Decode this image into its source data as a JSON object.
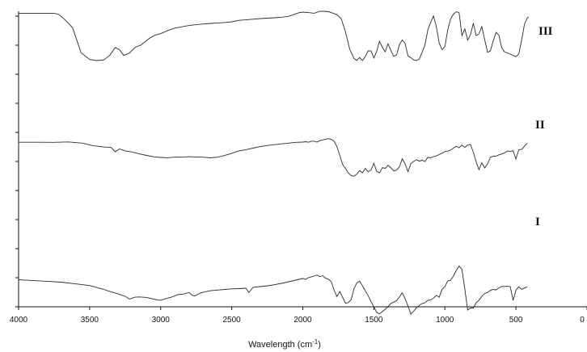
{
  "chart_data": {
    "type": "line",
    "xlabel": "Wavelength (cm",
    "xlabel_sup": "-1",
    "xlabel_close": ")",
    "xlim": [
      4000,
      0
    ],
    "xticks": [
      4000,
      3500,
      3000,
      2500,
      2000,
      1500,
      1000,
      500,
      0
    ],
    "xtick_labels": [
      "4000",
      "3500",
      "3000",
      "2500",
      "2000",
      "1500",
      "1000",
      "500",
      "0"
    ],
    "ylim": [
      0,
      100
    ],
    "y_tick_count": 11,
    "y_tick_labels_shown": false,
    "grid": false,
    "line_color": "#2a2a2a",
    "series": [
      {
        "name": "III",
        "x": [
          4000,
          3750,
          3720,
          3680,
          3620,
          3560,
          3500,
          3450,
          3400,
          3360,
          3320,
          3290,
          3260,
          3220,
          3180,
          3140,
          3080,
          3040,
          3000,
          2950,
          2900,
          2850,
          2800,
          2750,
          2700,
          2650,
          2600,
          2550,
          2500,
          2450,
          2400,
          2350,
          2300,
          2250,
          2200,
          2150,
          2100,
          2060,
          2030,
          2000,
          1960,
          1920,
          1880,
          1850,
          1820,
          1790,
          1760,
          1730,
          1700,
          1670,
          1640,
          1620,
          1600,
          1580,
          1560,
          1540,
          1520,
          1500,
          1480,
          1460,
          1440,
          1420,
          1400,
          1380,
          1360,
          1340,
          1320,
          1300,
          1280,
          1260,
          1240,
          1220,
          1200,
          1180,
          1160,
          1140,
          1120,
          1100,
          1080,
          1060,
          1040,
          1020,
          1000,
          980,
          960,
          940,
          920,
          900,
          880,
          860,
          840,
          820,
          800,
          780,
          760,
          740,
          720,
          700,
          680,
          660,
          640,
          620,
          600,
          580,
          560,
          540,
          520,
          500,
          480,
          460,
          440,
          420,
          410
        ],
        "y": [
          100.0,
          100.0,
          99.4,
          95.8,
          88.9,
          69.5,
          64.3,
          63.5,
          64.0,
          67.4,
          73.5,
          71.9,
          67.4,
          69.3,
          73.7,
          75.4,
          80.6,
          83.1,
          84.3,
          86.7,
          88.6,
          89.6,
          90.6,
          91.2,
          91.8,
          92.2,
          92.6,
          92.9,
          93.5,
          94.6,
          95.0,
          95.5,
          96.0,
          96.3,
          96.6,
          97.0,
          97.7,
          99.3,
          100.4,
          101.0,
          100.6,
          100.1,
          101.6,
          101.6,
          101.3,
          100.2,
          98.9,
          96.0,
          85.9,
          72.3,
          65.1,
          63.6,
          65.8,
          63.5,
          66.6,
          71.0,
          70.9,
          65.4,
          70.6,
          78.5,
          73.7,
          70.2,
          76.5,
          71.2,
          66.7,
          67.7,
          75.7,
          79.4,
          76.8,
          67.0,
          65.8,
          64.0,
          63.5,
          64.7,
          69.9,
          75.6,
          87.4,
          93.3,
          97.9,
          89.6,
          77.1,
          71.9,
          74.3,
          87.4,
          95.6,
          99.4,
          101.2,
          100.6,
          82.8,
          88.0,
          79.3,
          83.4,
          92.4,
          82.8,
          84.1,
          89.7,
          79.5,
          69.9,
          71.0,
          78.6,
          85.3,
          83.1,
          73.4,
          70.1,
          69.4,
          68.5,
          67.5,
          66.5,
          68.5,
          79.4,
          91.8,
          96.5,
          97.1
        ]
      },
      {
        "name": "II",
        "x": [
          4000,
          3850,
          3750,
          3650,
          3550,
          3480,
          3400,
          3350,
          3320,
          3290,
          3250,
          3200,
          3150,
          3100,
          3050,
          3000,
          2950,
          2900,
          2850,
          2800,
          2750,
          2700,
          2650,
          2600,
          2550,
          2500,
          2450,
          2400,
          2350,
          2300,
          2250,
          2200,
          2150,
          2100,
          2050,
          2000,
          1980,
          1960,
          1940,
          1920,
          1900,
          1880,
          1860,
          1840,
          1820,
          1800,
          1780,
          1760,
          1740,
          1720,
          1700,
          1680,
          1660,
          1640,
          1620,
          1600,
          1580,
          1560,
          1540,
          1520,
          1500,
          1480,
          1460,
          1440,
          1420,
          1400,
          1380,
          1360,
          1340,
          1320,
          1300,
          1280,
          1260,
          1240,
          1220,
          1200,
          1180,
          1160,
          1140,
          1120,
          1100,
          1080,
          1060,
          1040,
          1020,
          1000,
          980,
          960,
          940,
          920,
          900,
          880,
          860,
          840,
          820,
          800,
          780,
          760,
          740,
          720,
          700,
          680,
          660,
          640,
          620,
          600,
          580,
          560,
          540,
          520,
          500,
          480,
          460,
          440,
          420
        ],
        "y": [
          64.0,
          64.0,
          63.9,
          64.2,
          63.3,
          61.4,
          60.3,
          60.0,
          56.6,
          58.8,
          57.3,
          56.4,
          55.0,
          53.8,
          52.7,
          52.2,
          52.0,
          52.5,
          52.4,
          52.8,
          52.6,
          52.4,
          51.9,
          52.4,
          53.7,
          55.4,
          57.3,
          58.2,
          59.4,
          60.6,
          61.5,
          62.1,
          62.7,
          63.3,
          63.9,
          64.1,
          64.4,
          64.0,
          64.8,
          64.8,
          64.1,
          65.2,
          65.7,
          66.2,
          66.8,
          66.2,
          64.7,
          60.6,
          54.0,
          46.8,
          43.8,
          40.3,
          38.1,
          37.8,
          39.3,
          42.1,
          40.3,
          43.7,
          41.2,
          42.5,
          47.7,
          41.5,
          40.3,
          44.3,
          43.8,
          46.2,
          44.1,
          41.8,
          42.4,
          45.0,
          51.2,
          47.2,
          41.2,
          47.5,
          49.1,
          50.5,
          49.3,
          50.1,
          49.0,
          52.3,
          51.9,
          52.9,
          53.4,
          54.5,
          55.5,
          56.8,
          57.1,
          57.9,
          59.4,
          60.9,
          59.7,
          61.7,
          60.0,
          61.8,
          62.3,
          56.3,
          48.8,
          42.8,
          48.1,
          44.1,
          47.1,
          52.2,
          53.3,
          53.2,
          54.2,
          54.9,
          55.8,
          57.2,
          56.7,
          57.5,
          51.0,
          58.2,
          58.4,
          60.9,
          63.3
        ]
      },
      {
        "name": "I",
        "x": [
          4000,
          3900,
          3800,
          3700,
          3600,
          3500,
          3400,
          3350,
          3300,
          3250,
          3220,
          3180,
          3150,
          3100,
          3050,
          3020,
          3000,
          2960,
          2920,
          2880,
          2840,
          2800,
          2780,
          2760,
          2720,
          2680,
          2650,
          2600,
          2550,
          2500,
          2450,
          2400,
          2380,
          2350,
          2300,
          2250,
          2200,
          2150,
          2100,
          2050,
          2000,
          1980,
          1960,
          1930,
          1900,
          1880,
          1860,
          1840,
          1820,
          1800,
          1780,
          1760,
          1740,
          1720,
          1700,
          1680,
          1660,
          1640,
          1620,
          1600,
          1580,
          1560,
          1540,
          1520,
          1500,
          1480,
          1460,
          1440,
          1420,
          1400,
          1380,
          1360,
          1340,
          1320,
          1300,
          1280,
          1260,
          1240,
          1220,
          1200,
          1180,
          1160,
          1140,
          1120,
          1100,
          1080,
          1060,
          1040,
          1020,
          1000,
          980,
          960,
          940,
          920,
          900,
          880,
          860,
          840,
          820,
          800,
          780,
          760,
          740,
          720,
          700,
          680,
          660,
          640,
          620,
          600,
          580,
          560,
          540,
          520,
          500,
          480,
          460,
          440,
          420
        ],
        "y": [
          36.2,
          35.7,
          35.1,
          34.4,
          33.1,
          31.8,
          28.8,
          27.0,
          25.4,
          23.5,
          21.3,
          22.8,
          23.0,
          22.6,
          21.3,
          20.6,
          20.4,
          21.8,
          23.0,
          24.7,
          25.2,
          26.5,
          24.3,
          23.8,
          26.1,
          27.1,
          27.8,
          28.3,
          28.8,
          29.2,
          29.4,
          29.7,
          26.4,
          30.4,
          31.0,
          31.6,
          32.4,
          33.5,
          34.7,
          36.0,
          37.3,
          36.6,
          37.9,
          38.8,
          39.9,
          38.8,
          39.4,
          37.5,
          36.8,
          34.8,
          28.4,
          23.2,
          27.2,
          22.7,
          18.1,
          18.6,
          20.9,
          29.2,
          33.9,
          35.1,
          31.6,
          27.8,
          24.0,
          19.4,
          15.4,
          11.0,
          9.9,
          11.6,
          13.4,
          15.4,
          18.0,
          18.9,
          20.1,
          22.9,
          26.3,
          21.6,
          16.1,
          9.7,
          11.9,
          14.6,
          16.4,
          17.9,
          18.5,
          20.4,
          20.6,
          22.1,
          24.2,
          22.7,
          28.9,
          31.0,
          35.4,
          35.9,
          39.1,
          43.5,
          46.9,
          44.5,
          29.1,
          12.8,
          14.5,
          14.4,
          18.5,
          20.4,
          23.4,
          25.6,
          26.5,
          28.0,
          28.8,
          28.4,
          30.0,
          31.1,
          31.1,
          31.2,
          31.0,
          20.3,
          28.1,
          31.0,
          28.8,
          29.9,
          30.8
        ]
      }
    ]
  }
}
